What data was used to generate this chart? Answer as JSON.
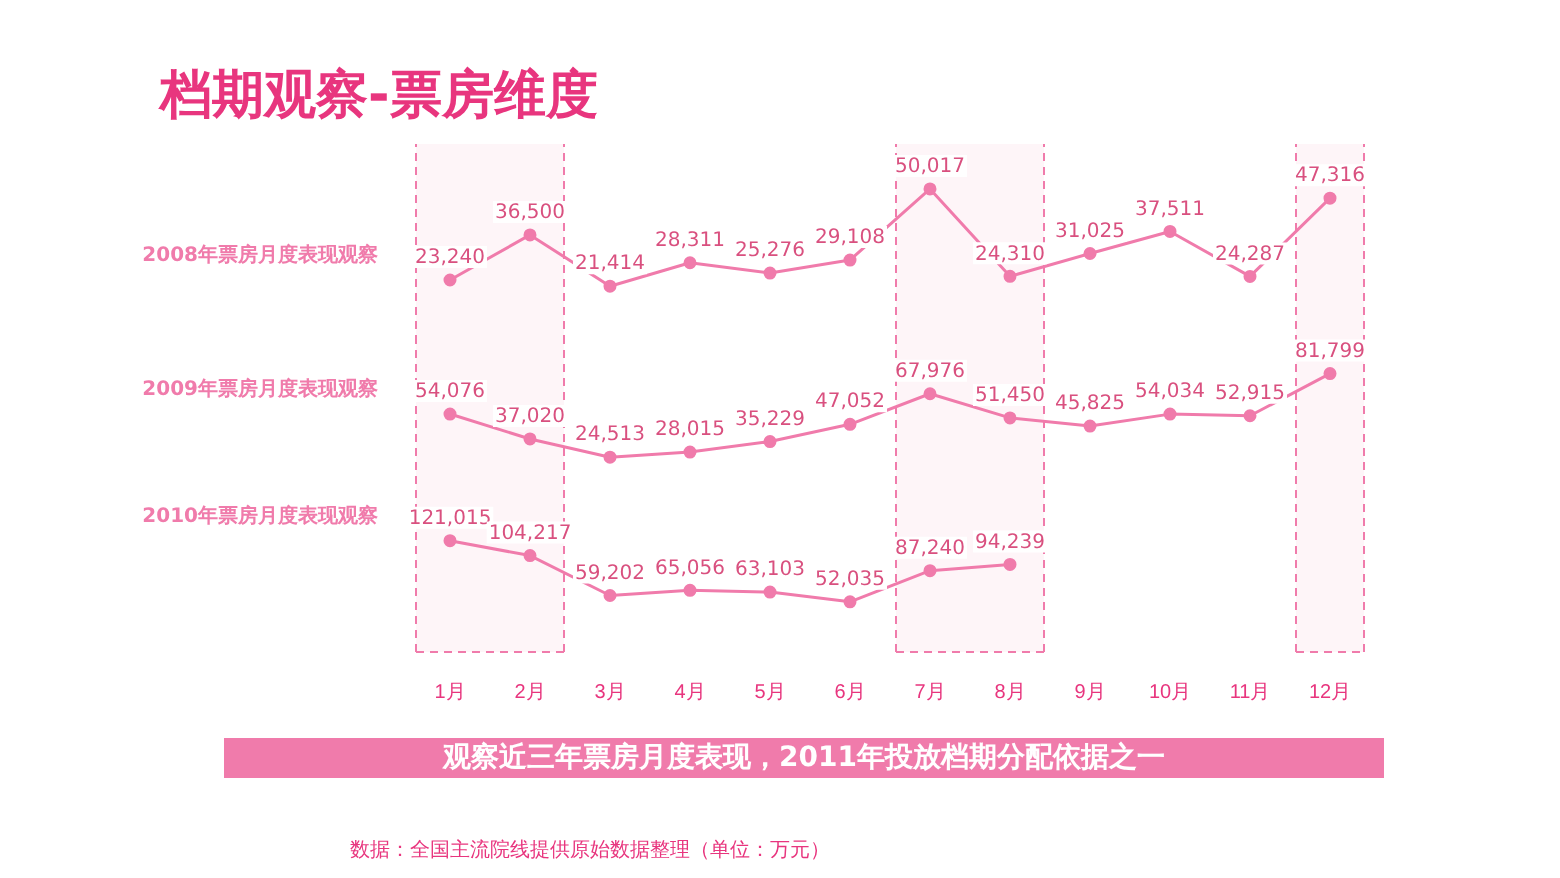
{
  "chart_data": [
    {
      "type": "line",
      "categories": [
        "1月",
        "2月",
        "3月",
        "4月",
        "5月",
        "6月",
        "7月",
        "8月",
        "9月",
        "10月",
        "11月",
        "12月"
      ],
      "title": "档期观察-票房维度",
      "series": [
        {
          "name": "2008年票房月度表现观察",
          "color": "#f07bab",
          "values": [
            23240,
            36500,
            21414,
            28311,
            25276,
            29108,
            50017,
            24310,
            31025,
            37511,
            24287,
            47316
          ],
          "value_labels": [
            "23,240",
            "36,500",
            "21,414",
            "28,311",
            "25,276",
            "29,108",
            "50,017",
            "24,310",
            "31,025",
            "37,511",
            "24,287",
            "47,316"
          ]
        }
      ],
      "bands": [
        {
          "axis": "x",
          "from": "1月",
          "to": "2月",
          "color": "#f07bab"
        },
        {
          "axis": "x",
          "from": "7月",
          "to": "8月",
          "color": "#f07bab"
        },
        {
          "axis": "x",
          "from": "12月",
          "to": "12月",
          "color": "#f07bab"
        }
      ],
      "marker": "circle",
      "line_style": "solid",
      "grid": false,
      "legend": false,
      "tick_labels": false
    },
    {
      "type": "line",
      "categories": [
        "1月",
        "2月",
        "3月",
        "4月",
        "5月",
        "6月",
        "7月",
        "8月",
        "9月",
        "10月",
        "11月",
        "12月"
      ],
      "series": [
        {
          "name": "2009年票房月度表现观察",
          "color": "#f07bab",
          "values": [
            54076,
            37020,
            24513,
            28015,
            35229,
            47052,
            67976,
            51450,
            45825,
            54034,
            52915,
            81799
          ],
          "value_labels": [
            "54,076",
            "37,020",
            "24,513",
            "28,015",
            "35,229",
            "47,052",
            "67,976",
            "51,450",
            "45,825",
            "54,034",
            "52,915",
            "81,799"
          ]
        }
      ],
      "bands": [
        {
          "axis": "x",
          "from": "1月",
          "to": "2月",
          "color": "#f07bab"
        },
        {
          "axis": "x",
          "from": "7月",
          "to": "8月",
          "color": "#f07bab"
        },
        {
          "axis": "x",
          "from": "12月",
          "to": "12月",
          "color": "#f07bab"
        }
      ],
      "marker": "circle",
      "line_style": "solid",
      "grid": false,
      "legend": false,
      "tick_labels": false
    },
    {
      "type": "line",
      "categories": [
        "1月",
        "2月",
        "3月",
        "4月",
        "5月",
        "6月",
        "7月",
        "8月",
        "9月",
        "10月",
        "11月",
        "12月"
      ],
      "series": [
        {
          "name": "2010年票房月度表现观察",
          "color": "#f07bab",
          "values": [
            121015,
            104217,
            59202,
            65056,
            63103,
            52035,
            87240,
            94239,
            null,
            null,
            null,
            null
          ],
          "value_labels": [
            "121,015",
            "104,217",
            "59,202",
            "65,056",
            "63,103",
            "52,035",
            "87,240",
            "94,239",
            null,
            null,
            null,
            null
          ]
        }
      ],
      "bands": [
        {
          "axis": "x",
          "from": "1月",
          "to": "2月",
          "color": "#f07bab"
        },
        {
          "axis": "x",
          "from": "7月",
          "to": "8月",
          "color": "#f07bab"
        },
        {
          "axis": "x",
          "from": "12月",
          "to": "12月",
          "color": "#f07bab"
        }
      ],
      "marker": "circle",
      "line_style": "solid",
      "grid": false,
      "legend": false,
      "tick_labels": "x",
      "annotations": [
        "观察近三年票房月度表现，2011年投放档期分配依据之一",
        "数据：全国主流院线提供原始数据整理（单位：万元）"
      ]
    }
  ]
}
